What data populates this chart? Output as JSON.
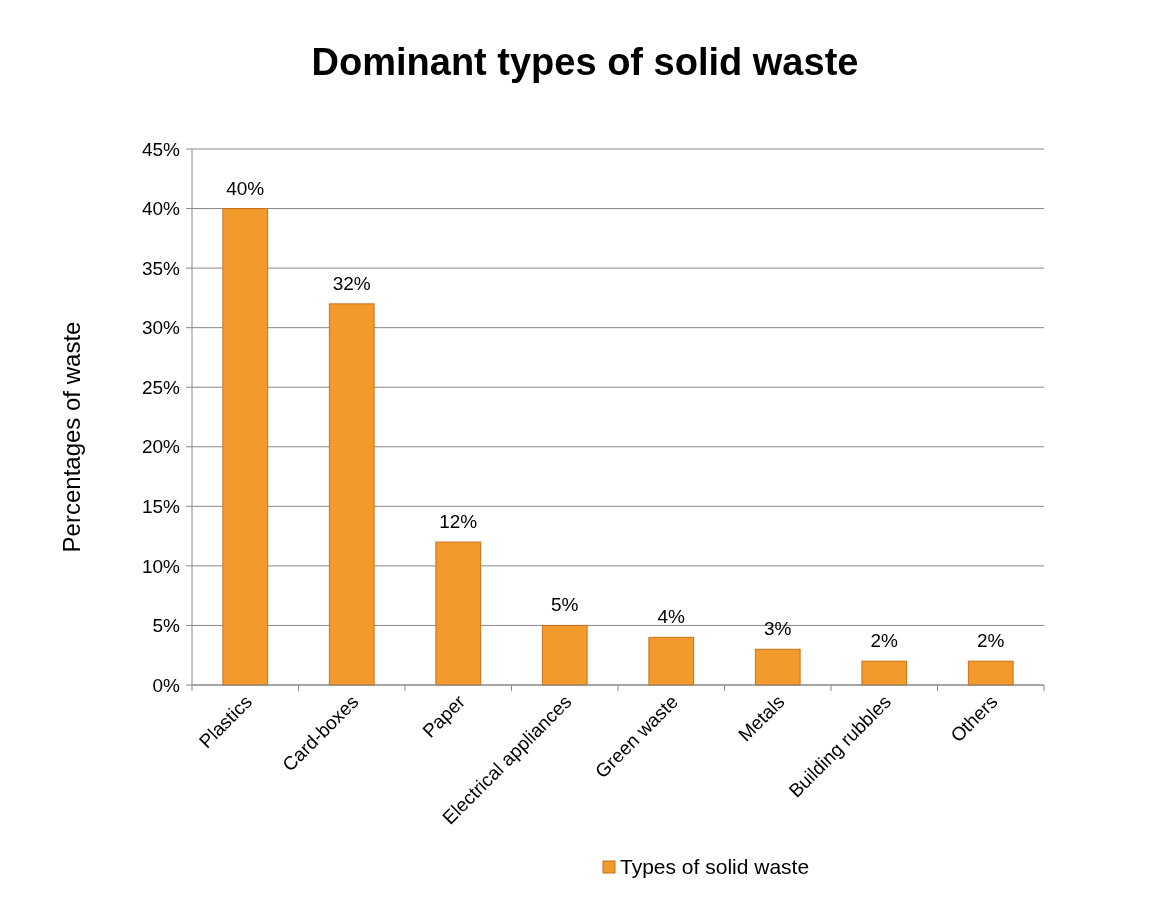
{
  "chart_data": {
    "type": "bar",
    "title": "Dominant types of solid waste",
    "ylabel": "Percentages of waste",
    "categories": [
      "Plastics",
      "Card-boxes",
      "Paper",
      "Electrical appliances",
      "Green waste",
      "Metals",
      "Building rubbles",
      "Others"
    ],
    "series": [
      {
        "name": "Types of solid waste",
        "color": "#f39a2c",
        "values": [
          40,
          32,
          12,
          5,
          4,
          3,
          2,
          2
        ],
        "value_labels": [
          "40%",
          "32%",
          "12%",
          "5%",
          "4%",
          "3%",
          "2%",
          "2%"
        ]
      }
    ],
    "ylim": [
      0,
      45
    ],
    "yticks": [
      {
        "value": 0,
        "label": "0%"
      },
      {
        "value": 5,
        "label": "5%"
      },
      {
        "value": 10,
        "label": "10%"
      },
      {
        "value": 15,
        "label": "15%"
      },
      {
        "value": 20,
        "label": "20%"
      },
      {
        "value": 25,
        "label": "25%"
      },
      {
        "value": 30,
        "label": "30%"
      },
      {
        "value": 35,
        "label": "35%"
      },
      {
        "value": 40,
        "label": "40%"
      },
      {
        "value": 45,
        "label": "45%"
      }
    ],
    "grid": "y",
    "legend": "bottom"
  }
}
